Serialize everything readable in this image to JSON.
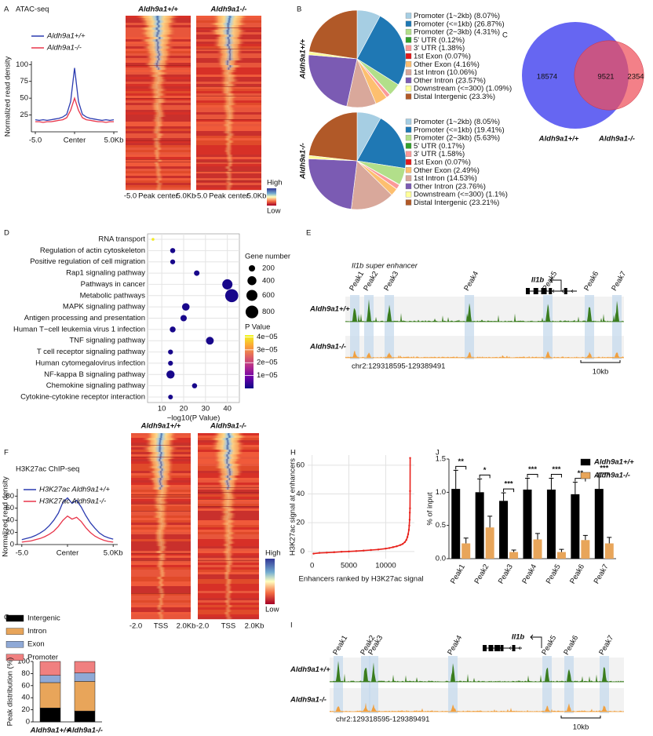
{
  "panel_labels": [
    "A",
    "B",
    "C",
    "D",
    "E",
    "F",
    "G",
    "H",
    "I",
    "J"
  ],
  "chart_data": [
    {
      "type": "line",
      "title": "ATAC-seq",
      "ylabel": "Normalized read density",
      "x": [
        -5,
        -4.5,
        -4,
        -3.5,
        -3,
        -2.5,
        -2,
        -1.5,
        -1,
        -0.5,
        0,
        0.5,
        1,
        1.5,
        2,
        2.5,
        3,
        3.5,
        4,
        4.5,
        5
      ],
      "series": [
        {
          "name": "Aldh9a1+/+",
          "color": "#2b3bb0",
          "values": [
            18,
            17,
            18,
            17,
            18,
            19,
            20,
            22,
            26,
            45,
            95,
            45,
            26,
            22,
            20,
            19,
            18,
            17,
            18,
            17,
            18
          ]
        },
        {
          "name": "Aldh9a1-/-",
          "color": "#e8354a",
          "values": [
            15,
            15,
            14,
            15,
            15,
            16,
            17,
            18,
            21,
            32,
            50,
            32,
            21,
            18,
            17,
            16,
            15,
            15,
            14,
            15,
            15
          ]
        }
      ],
      "xlim": [
        -5.5,
        5.5
      ],
      "ylim": [
        0,
        105
      ],
      "yticks": [
        25,
        50,
        75,
        100
      ],
      "xticks": [
        {
          "value": -5,
          "label": "-5.0"
        },
        {
          "value": 0,
          "label": "Center"
        },
        {
          "value": 5,
          "label": "5.0Kb"
        }
      ]
    },
    {
      "type": "heatmap",
      "panels": [
        "Aldh9a1+/+",
        "Aldh9a1-/-"
      ],
      "xticks": [
        "-5.0",
        "Peak center",
        "5.0Kb"
      ],
      "colorbar": [
        "High",
        "Low"
      ]
    },
    {
      "type": "pie",
      "ylabel": "Aldh9a1+/+",
      "categories": [
        "Promoter (1~2kb)",
        "Promoter (<=1kb)",
        "Promoter (2~3kb)",
        "5' UTR",
        "3' UTR",
        "1st Exon",
        "Other Exon",
        "1st Intron",
        "Other Intron",
        "Downstream (<=300)",
        "Distal Intergenic"
      ],
      "values": [
        8.07,
        26.87,
        4.31,
        0.12,
        1.38,
        0.07,
        4.16,
        10.06,
        23.57,
        1.09,
        23.3
      ],
      "value_labels": [
        "(8.07%)",
        "(26.87%)",
        "(4.31%)",
        "(0.12%)",
        "(1.38%)",
        "(0.07%)",
        "(4.16%)",
        "(10.06%)",
        "(23.57%)",
        "(1.09%)",
        "(23.3%)"
      ],
      "colors": [
        "#a6cee3",
        "#1f78b4",
        "#b2df8a",
        "#33a02c",
        "#fb9a99",
        "#e31a1c",
        "#fdbf6f",
        "#d9a89b",
        "#7b5bb3",
        "#ffff99",
        "#b15928"
      ]
    },
    {
      "type": "pie",
      "ylabel": "Aldh9a1-/-",
      "categories": [
        "Promoter (1~2kb)",
        "Promoter (<=1kb)",
        "Promoter (2~3kb)",
        "5' UTR",
        "3' UTR",
        "1st Exon",
        "Other Exon",
        "1st Intron",
        "Other Intron",
        "Downstream (<=300)",
        "Distal Intergenic"
      ],
      "values": [
        8.05,
        19.41,
        5.63,
        0.17,
        1.58,
        0.07,
        2.49,
        14.53,
        23.76,
        1.1,
        23.21
      ],
      "value_labels": [
        "(8.05%)",
        "(19.41%)",
        "(5.63%)",
        "(0.17%)",
        "(1.58%)",
        "(0.07%)",
        "(2.49%)",
        "(14.53%)",
        "(23.76%)",
        "(1.1%)",
        "(23.21%)"
      ],
      "colors": [
        "#a6cee3",
        "#1f78b4",
        "#b2df8a",
        "#33a02c",
        "#fb9a99",
        "#e31a1c",
        "#fdbf6f",
        "#d9a89b",
        "#7b5bb3",
        "#ffff99",
        "#b15928"
      ]
    },
    {
      "type": "venn",
      "sets": [
        {
          "name": "Aldh9a1+/+",
          "color": "#6666f2"
        },
        {
          "name": "Aldh9a1-/-",
          "color": "#ee4f5a"
        }
      ],
      "values": [
        18574,
        9521,
        2354
      ]
    },
    {
      "type": "dot",
      "xlabel": "−log10(P Value)",
      "categories": [
        "RNA transport",
        "Regulation of actin cytoskeleton",
        "Positive regulation of cell migration",
        "Rap1 signaling pathway",
        "Pathways in cancer",
        "Metabolic pathways",
        "MAPK signaling pathway",
        "Antigen processing and presentation",
        "Human T−cell leukemia virus 1 infection",
        "TNF signaling pathway",
        "T cell receptor signaling pathway",
        "Human cytomegalovirus infection",
        "NF-kappa B signaling pathway",
        "Chemokine signaling pathway",
        "Cytokine-cytokine receptor interaction"
      ],
      "x": [
        6,
        15,
        15,
        26,
        40,
        42,
        21,
        20,
        15,
        32,
        14,
        14,
        14,
        25,
        14
      ],
      "sizes": [
        40,
        130,
        120,
        150,
        520,
        850,
        280,
        200,
        170,
        300,
        120,
        120,
        330,
        130,
        110
      ],
      "pvalues": [
        4e-05,
        1e-06,
        1e-06,
        1e-06,
        1e-06,
        1e-06,
        1e-06,
        1e-06,
        1e-06,
        1e-06,
        1e-06,
        1e-06,
        1e-06,
        1e-06,
        1e-06
      ],
      "xlim": [
        3.5,
        45.5
      ],
      "xticks": [
        10,
        20,
        30,
        40
      ],
      "size_legend": {
        "title": "Gene number",
        "values": [
          200,
          400,
          600,
          800
        ]
      },
      "color_legend": {
        "title": "P Value",
        "lim": [
          0,
          4.15e-05
        ],
        "ticks": [
          {
            "value": 4e-05,
            "label": "4e−05"
          },
          {
            "value": 3e-05,
            "label": "3e−05"
          },
          {
            "value": 2e-05,
            "label": "2e−05"
          },
          {
            "value": 1e-05,
            "label": "1e−05"
          }
        ]
      }
    },
    {
      "type": "tracks",
      "title": "Il1b super enhancer",
      "peaks": [
        "Peak1",
        "Peak2",
        "Peak3",
        "Peak4",
        "Peak5",
        "Peak6",
        "Peak7"
      ],
      "gene": "Il1b",
      "samples": [
        "Aldh9a1+/+",
        "Aldh9a1-/-"
      ],
      "region": "chr2:129318595-129389491",
      "scale": "10kb"
    },
    {
      "type": "line",
      "title": "H3K27ac ChIP-seq",
      "ylabel": "Normalized read density",
      "x": [
        -5,
        -4.5,
        -4,
        -3.5,
        -3,
        -2.5,
        -2,
        -1.5,
        -1,
        -0.5,
        0,
        0.5,
        1,
        1.5,
        2,
        2.5,
        3,
        3.5,
        4,
        4.5,
        5
      ],
      "series": [
        {
          "name": "H3K27ac Aldh9a1+/+",
          "color": "#2b3bb0",
          "values": [
            8,
            10,
            12,
            15,
            19,
            24,
            31,
            40,
            52,
            70,
            77,
            68,
            73,
            62,
            48,
            36,
            27,
            19,
            14,
            11,
            9
          ]
        },
        {
          "name": "H3K27ac Aldh9a1-/-",
          "color": "#e8354a",
          "values": [
            4,
            5,
            6,
            8,
            10,
            13,
            17,
            22,
            30,
            40,
            47,
            42,
            45,
            38,
            28,
            20,
            14,
            10,
            7,
            5,
            4
          ]
        }
      ],
      "xlim": [
        -5.5,
        5.5
      ],
      "ylim": [
        0,
        92
      ],
      "yticks": [
        0,
        20,
        40,
        60,
        80
      ],
      "xticks": [
        {
          "value": -5,
          "label": "-5.0"
        },
        {
          "value": 0,
          "label": "Center"
        },
        {
          "value": 5,
          "label": "5.0Kb"
        }
      ]
    },
    {
      "type": "heatmap",
      "panels": [
        "Aldh9a1+/+",
        "Aldh9a1-/-"
      ],
      "xticks": [
        "-2.0",
        "TSS",
        "2.0Kb"
      ],
      "colorbar": [
        "High",
        "Low"
      ]
    },
    {
      "type": "bar",
      "stacked": true,
      "ylabel": "Peak distribution (%)",
      "categories": [
        "Aldh9a1+/+",
        "Aldh9a1-/-"
      ],
      "series": [
        {
          "name": "Intergenic",
          "color": "#000000",
          "values": [
            23,
            18
          ]
        },
        {
          "name": "Intron",
          "color": "#e8a55a",
          "values": [
            42,
            49
          ]
        },
        {
          "name": "Exon",
          "color": "#8fa9d6",
          "values": [
            12,
            14
          ]
        },
        {
          "name": "Promoter",
          "color": "#f08080",
          "values": [
            23,
            19
          ]
        }
      ],
      "ylim": [
        0,
        100
      ],
      "yticks": [
        0,
        20,
        40,
        60,
        80,
        100
      ]
    },
    {
      "type": "scatter",
      "xlabel": "Enhancers ranked by H3K27ac signal",
      "ylabel": "H3K27ac signal at enhancers",
      "color": "#e8201a",
      "grid": true,
      "x": [
        200,
        1000,
        2000,
        3000,
        4000,
        5000,
        6000,
        7000,
        8000,
        9000,
        10000,
        10500,
        11000,
        11500,
        12000,
        12300,
        12600,
        12800,
        12950,
        13050,
        13150,
        13200,
        13250,
        13280,
        13300,
        13310,
        13320
      ],
      "y": [
        -1.5,
        -1,
        -0.8,
        -0.5,
        -0.2,
        0,
        0.3,
        0.6,
        1,
        1.4,
        2,
        2.4,
        3,
        3.6,
        4.5,
        5.2,
        6.5,
        8,
        10,
        12,
        15,
        18,
        22,
        27,
        30,
        42,
        65
      ],
      "xlim": [
        -600,
        13900
      ],
      "ylim": [
        -5,
        67
      ],
      "xticks": [
        0,
        5000,
        10000
      ],
      "yticks": [
        0,
        20,
        40,
        60
      ]
    },
    {
      "type": "tracks",
      "peaks": [
        "Peak1",
        "Peak2",
        "Peak3",
        "Peak4",
        "Peak5",
        "Peak6",
        "Peak7"
      ],
      "gene": "Il1b",
      "samples": [
        "Aldh9a1+/+",
        "Aldh9a1-/-"
      ],
      "region": "chr2:129318595-129389491",
      "scale": "10kb"
    },
    {
      "type": "bar",
      "ylabel": "% of input",
      "categories": [
        "Peak1",
        "Peak2",
        "Peak3",
        "Peak4",
        "Peak5",
        "Peak6",
        "Peak7"
      ],
      "series": [
        {
          "name": "Aldh9a1+/+",
          "color": "#000000",
          "values": [
            1.05,
            1.0,
            0.87,
            1.04,
            1.04,
            0.97,
            1.05
          ],
          "errors": [
            0.28,
            0.2,
            0.12,
            0.17,
            0.17,
            0.18,
            0.18
          ]
        },
        {
          "name": "Aldh9a1-/-",
          "color": "#e8a55a",
          "values": [
            0.23,
            0.47,
            0.1,
            0.29,
            0.1,
            0.28,
            0.23
          ],
          "errors": [
            0.08,
            0.17,
            0.03,
            0.09,
            0.04,
            0.07,
            0.09
          ]
        }
      ],
      "significance": [
        "**",
        "*",
        "***",
        "***",
        "***",
        "**",
        "***"
      ],
      "ylim": [
        0,
        1.5
      ],
      "yticks": [
        {
          "value": 0,
          "label": "0.0"
        },
        {
          "value": 0.5,
          "label": "0.5"
        },
        {
          "value": 1,
          "label": "1.0"
        },
        {
          "value": 1.5,
          "label": "1.5"
        }
      ]
    }
  ]
}
